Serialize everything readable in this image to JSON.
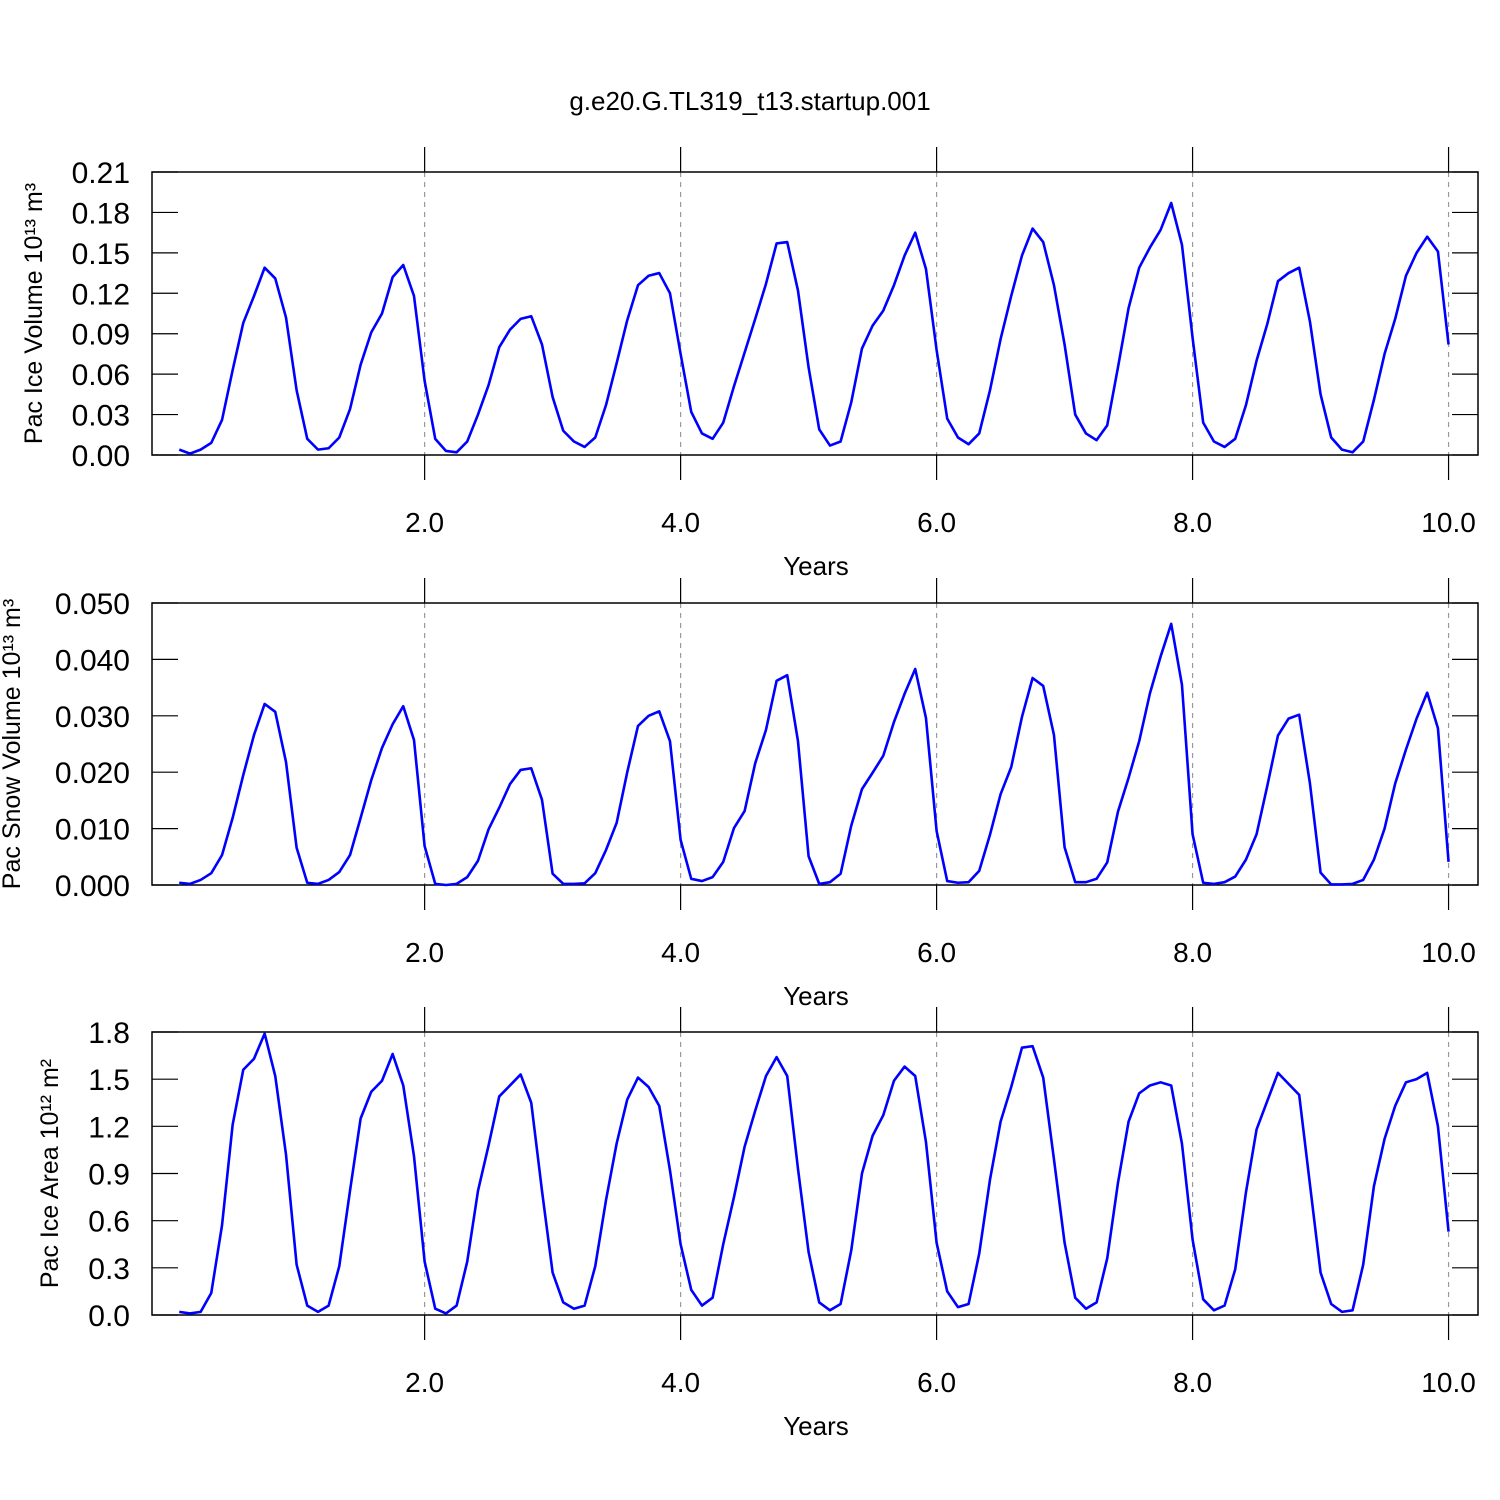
{
  "chart_data": [
    {
      "type": "line",
      "title": "g.e20.G.TL319_t13.startup.001",
      "xlabel": "Years",
      "ylabel": "Pac Ice Volume 10¹³ m³",
      "x": [
        0.083,
        0.167,
        0.25,
        0.333,
        0.417,
        0.5,
        0.583,
        0.667,
        0.75,
        0.833,
        0.917,
        1,
        1.083,
        1.167,
        1.25,
        1.333,
        1.417,
        1.5,
        1.583,
        1.667,
        1.75,
        1.833,
        1.917,
        2,
        2.083,
        2.167,
        2.25,
        2.333,
        2.417,
        2.5,
        2.583,
        2.667,
        2.75,
        2.833,
        2.917,
        3,
        3.083,
        3.167,
        3.25,
        3.333,
        3.417,
        3.5,
        3.583,
        3.667,
        3.75,
        3.833,
        3.917,
        4,
        4.083,
        4.167,
        4.25,
        4.333,
        4.417,
        4.5,
        4.583,
        4.667,
        4.75,
        4.833,
        4.917,
        5,
        5.083,
        5.167,
        5.25,
        5.333,
        5.417,
        5.5,
        5.583,
        5.667,
        5.75,
        5.833,
        5.917,
        6,
        6.083,
        6.167,
        6.25,
        6.333,
        6.417,
        6.5,
        6.583,
        6.667,
        6.75,
        6.833,
        6.917,
        7,
        7.083,
        7.167,
        7.25,
        7.333,
        7.417,
        7.5,
        7.583,
        7.667,
        7.75,
        7.833,
        7.917,
        8,
        8.083,
        8.167,
        8.25,
        8.333,
        8.417,
        8.5,
        8.583,
        8.667,
        8.75,
        8.833,
        8.917,
        9,
        9.083,
        9.167,
        9.25,
        9.333,
        9.417,
        9.5,
        9.583,
        9.667,
        9.75,
        9.833,
        9.917,
        10
      ],
      "series": [
        {
          "color": "#0000ff",
          "values": [
            0.004,
            0.001,
            0.004,
            0.009,
            0.026,
            0.063,
            0.098,
            0.118,
            0.139,
            0.131,
            0.102,
            0.048,
            0.012,
            0.004,
            0.005,
            0.013,
            0.034,
            0.067,
            0.091,
            0.105,
            0.132,
            0.141,
            0.118,
            0.055,
            0.012,
            0.003,
            0.002,
            0.01,
            0.03,
            0.052,
            0.08,
            0.093,
            0.101,
            0.103,
            0.082,
            0.043,
            0.018,
            0.01,
            0.006,
            0.013,
            0.037,
            0.068,
            0.1,
            0.126,
            0.133,
            0.135,
            0.12,
            0.075,
            0.032,
            0.016,
            0.012,
            0.024,
            0.051,
            0.076,
            0.101,
            0.127,
            0.157,
            0.158,
            0.122,
            0.065,
            0.019,
            0.007,
            0.01,
            0.039,
            0.079,
            0.096,
            0.107,
            0.126,
            0.148,
            0.165,
            0.138,
            0.078,
            0.027,
            0.013,
            0.008,
            0.016,
            0.048,
            0.086,
            0.118,
            0.148,
            0.168,
            0.158,
            0.126,
            0.082,
            0.03,
            0.016,
            0.011,
            0.022,
            0.065,
            0.109,
            0.139,
            0.154,
            0.167,
            0.187,
            0.156,
            0.087,
            0.024,
            0.01,
            0.006,
            0.012,
            0.037,
            0.07,
            0.097,
            0.129,
            0.135,
            0.139,
            0.099,
            0.045,
            0.013,
            0.004,
            0.002,
            0.01,
            0.041,
            0.075,
            0.101,
            0.133,
            0.15,
            0.162,
            0.151,
            0.082
          ]
        }
      ],
      "xlim": [
        -0.13,
        10.23
      ],
      "xticks": [
        {
          "value": 2,
          "label": "2.0"
        },
        {
          "value": 4,
          "label": "4.0"
        },
        {
          "value": 6,
          "label": "6.0"
        },
        {
          "value": 8,
          "label": "8.0"
        },
        {
          "value": 10,
          "label": "10.0"
        }
      ],
      "ylim": [
        0,
        0.21
      ],
      "yticks": [
        {
          "value": 0,
          "label": "0.00"
        },
        0.03,
        0.06,
        0.09,
        0.12,
        0.15,
        0.18,
        0.21
      ],
      "x_grid": true
    },
    {
      "type": "line",
      "xlabel": "Years",
      "ylabel": "Pac Snow Volume 10¹³ m³",
      "x": [
        0.083,
        0.167,
        0.25,
        0.333,
        0.417,
        0.5,
        0.583,
        0.667,
        0.75,
        0.833,
        0.917,
        1,
        1.083,
        1.167,
        1.25,
        1.333,
        1.417,
        1.5,
        1.583,
        1.667,
        1.75,
        1.833,
        1.917,
        2,
        2.083,
        2.167,
        2.25,
        2.333,
        2.417,
        2.5,
        2.583,
        2.667,
        2.75,
        2.833,
        2.917,
        3,
        3.083,
        3.167,
        3.25,
        3.333,
        3.417,
        3.5,
        3.583,
        3.667,
        3.75,
        3.833,
        3.917,
        4,
        4.083,
        4.167,
        4.25,
        4.333,
        4.417,
        4.5,
        4.583,
        4.667,
        4.75,
        4.833,
        4.917,
        5,
        5.083,
        5.167,
        5.25,
        5.333,
        5.417,
        5.5,
        5.583,
        5.667,
        5.75,
        5.833,
        5.917,
        6,
        6.083,
        6.167,
        6.25,
        6.333,
        6.417,
        6.5,
        6.583,
        6.667,
        6.75,
        6.833,
        6.917,
        7,
        7.083,
        7.167,
        7.25,
        7.333,
        7.417,
        7.5,
        7.583,
        7.667,
        7.75,
        7.833,
        7.917,
        8,
        8.083,
        8.167,
        8.25,
        8.333,
        8.417,
        8.5,
        8.583,
        8.667,
        8.75,
        8.833,
        8.917,
        9,
        9.083,
        9.167,
        9.25,
        9.333,
        9.417,
        9.5,
        9.583,
        9.667,
        9.75,
        9.833,
        9.917,
        10
      ],
      "series": [
        {
          "color": "#0000ff",
          "values": [
            0.0004,
            0.0002,
            0.0009,
            0.0021,
            0.0053,
            0.0119,
            0.0195,
            0.0266,
            0.0321,
            0.0307,
            0.0218,
            0.0066,
            0.0004,
            0.0002,
            0.0009,
            0.0023,
            0.0053,
            0.0119,
            0.0186,
            0.0243,
            0.0285,
            0.0317,
            0.0257,
            0.0069,
            0.0002,
            0,
            0.0002,
            0.0014,
            0.0043,
            0.0099,
            0.0137,
            0.0179,
            0.0204,
            0.0207,
            0.0151,
            0.002,
            0.0002,
            0.0002,
            0.0003,
            0.0021,
            0.0062,
            0.011,
            0.02,
            0.0282,
            0.03,
            0.0308,
            0.0255,
            0.008,
            0.0011,
            0.0007,
            0.0014,
            0.0041,
            0.0101,
            0.0131,
            0.0216,
            0.0275,
            0.0362,
            0.0372,
            0.0255,
            0.0051,
            0.0002,
            0.0005,
            0.002,
            0.0105,
            0.017,
            0.0199,
            0.0229,
            0.0289,
            0.0339,
            0.0383,
            0.0296,
            0.0096,
            0.0007,
            0.0004,
            0.0005,
            0.0025,
            0.0089,
            0.0161,
            0.0209,
            0.0298,
            0.0367,
            0.0353,
            0.0266,
            0.0067,
            0.0005,
            0.0005,
            0.0011,
            0.004,
            0.013,
            0.019,
            0.0255,
            0.034,
            0.0405,
            0.0463,
            0.0355,
            0.009,
            0.0004,
            0.0002,
            0.0005,
            0.0015,
            0.0045,
            0.009,
            0.0175,
            0.0265,
            0.0295,
            0.0302,
            0.018,
            0.0022,
            0.0001,
            0.0001,
            0.0002,
            0.0009,
            0.0045,
            0.01,
            0.018,
            0.024,
            0.0295,
            0.0341,
            0.0278,
            0.0041
          ]
        }
      ],
      "xlim": [
        -0.13,
        10.23
      ],
      "xticks": [
        {
          "value": 2,
          "label": "2.0"
        },
        {
          "value": 4,
          "label": "4.0"
        },
        {
          "value": 6,
          "label": "6.0"
        },
        {
          "value": 8,
          "label": "8.0"
        },
        {
          "value": 10,
          "label": "10.0"
        }
      ],
      "ylim": [
        0,
        0.05
      ],
      "yticks": [
        {
          "value": 0,
          "label": "0.000"
        },
        {
          "value": 0.01,
          "label": "0.010"
        },
        {
          "value": 0.02,
          "label": "0.020"
        },
        {
          "value": 0.03,
          "label": "0.030"
        },
        {
          "value": 0.04,
          "label": "0.040"
        },
        {
          "value": 0.05,
          "label": "0.050"
        }
      ],
      "x_grid": true
    },
    {
      "type": "line",
      "xlabel": "Years",
      "ylabel": "Pac Ice Area 10¹² m²",
      "x": [
        0.083,
        0.167,
        0.25,
        0.333,
        0.417,
        0.5,
        0.583,
        0.667,
        0.75,
        0.833,
        0.917,
        1,
        1.083,
        1.167,
        1.25,
        1.333,
        1.417,
        1.5,
        1.583,
        1.667,
        1.75,
        1.833,
        1.917,
        2,
        2.083,
        2.167,
        2.25,
        2.333,
        2.417,
        2.5,
        2.583,
        2.667,
        2.75,
        2.833,
        2.917,
        3,
        3.083,
        3.167,
        3.25,
        3.333,
        3.417,
        3.5,
        3.583,
        3.667,
        3.75,
        3.833,
        3.917,
        4,
        4.083,
        4.167,
        4.25,
        4.333,
        4.417,
        4.5,
        4.583,
        4.667,
        4.75,
        4.833,
        4.917,
        5,
        5.083,
        5.167,
        5.25,
        5.333,
        5.417,
        5.5,
        5.583,
        5.667,
        5.75,
        5.833,
        5.917,
        6,
        6.083,
        6.167,
        6.25,
        6.333,
        6.417,
        6.5,
        6.583,
        6.667,
        6.75,
        6.833,
        6.917,
        7,
        7.083,
        7.167,
        7.25,
        7.333,
        7.417,
        7.5,
        7.583,
        7.667,
        7.75,
        7.833,
        7.917,
        8,
        8.083,
        8.167,
        8.25,
        8.333,
        8.417,
        8.5,
        8.583,
        8.667,
        8.75,
        8.833,
        8.917,
        9,
        9.083,
        9.167,
        9.25,
        9.333,
        9.417,
        9.5,
        9.583,
        9.667,
        9.75,
        9.833,
        9.917,
        10
      ],
      "series": [
        {
          "color": "#0000ff",
          "values": [
            0.02,
            0.01,
            0.02,
            0.14,
            0.57,
            1.21,
            1.56,
            1.63,
            1.79,
            1.52,
            1.02,
            0.32,
            0.06,
            0.02,
            0.06,
            0.31,
            0.79,
            1.25,
            1.42,
            1.49,
            1.66,
            1.46,
            1.01,
            0.34,
            0.04,
            0.01,
            0.06,
            0.34,
            0.79,
            1.08,
            1.39,
            1.46,
            1.53,
            1.35,
            0.79,
            0.27,
            0.08,
            0.04,
            0.06,
            0.31,
            0.73,
            1.09,
            1.37,
            1.51,
            1.45,
            1.33,
            0.92,
            0.45,
            0.16,
            0.06,
            0.11,
            0.45,
            0.75,
            1.07,
            1.3,
            1.52,
            1.64,
            1.52,
            0.93,
            0.4,
            0.08,
            0.03,
            0.07,
            0.41,
            0.9,
            1.14,
            1.27,
            1.49,
            1.58,
            1.52,
            1.1,
            0.46,
            0.15,
            0.05,
            0.07,
            0.39,
            0.86,
            1.23,
            1.45,
            1.7,
            1.71,
            1.51,
            0.99,
            0.46,
            0.11,
            0.04,
            0.08,
            0.36,
            0.84,
            1.23,
            1.41,
            1.46,
            1.48,
            1.46,
            1.09,
            0.48,
            0.1,
            0.03,
            0.06,
            0.29,
            0.78,
            1.18,
            1.36,
            1.54,
            1.47,
            1.4,
            0.83,
            0.27,
            0.07,
            0.02,
            0.03,
            0.32,
            0.82,
            1.12,
            1.33,
            1.48,
            1.5,
            1.54,
            1.2,
            0.53
          ]
        }
      ],
      "xlim": [
        -0.13,
        10.23
      ],
      "xticks": [
        {
          "value": 2,
          "label": "2.0"
        },
        {
          "value": 4,
          "label": "4.0"
        },
        {
          "value": 6,
          "label": "6.0"
        },
        {
          "value": 8,
          "label": "8.0"
        },
        {
          "value": 10,
          "label": "10.0"
        }
      ],
      "ylim": [
        0,
        1.8
      ],
      "yticks": [
        {
          "value": 0,
          "label": "0.0"
        },
        0.3,
        0.6,
        0.9,
        1.2,
        1.5,
        1.8
      ],
      "x_grid": true
    }
  ]
}
